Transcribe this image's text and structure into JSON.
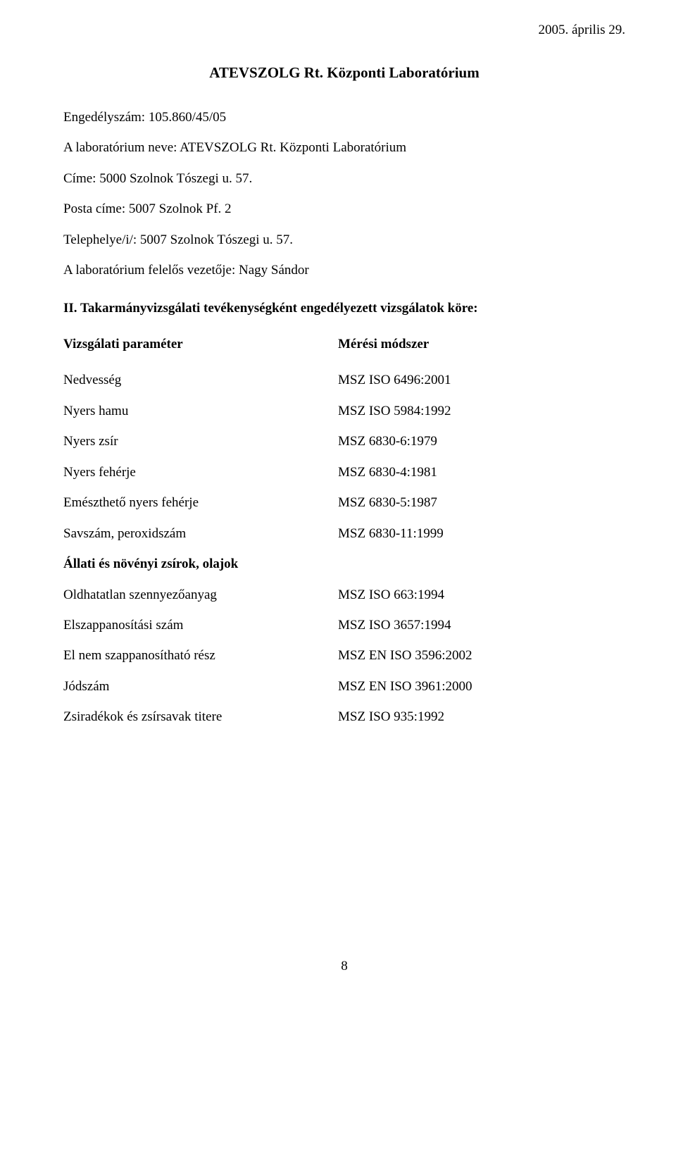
{
  "header": {
    "date": "2005. április 29."
  },
  "title": "ATEVSZOLG Rt. Központi Laboratórium",
  "info": {
    "license": "Engedélyszám: 105.860/45/05",
    "lab_name": "A laboratórium neve: ATEVSZOLG Rt. Központi Laboratórium",
    "address": "Címe: 5000 Szolnok Tószegi u. 57.",
    "postal": "Posta címe: 5007 Szolnok Pf. 2",
    "site": "Telephelye/i/: 5007 Szolnok Tószegi u. 57.",
    "manager": "A laboratórium felelős vezetője: Nagy Sándor"
  },
  "section_heading": "II. Takarmányvizsgálati tevékenységként engedélyezett vizsgálatok köre:",
  "columns": {
    "left_header": "Vizsgálati paraméter",
    "right_header": "Mérési módszer"
  },
  "rows": [
    {
      "param": "Nedvesség",
      "method": "MSZ ISO 6496:2001"
    },
    {
      "param": "Nyers hamu",
      "method": "MSZ ISO 5984:1992"
    },
    {
      "param": "Nyers zsír",
      "method": "MSZ 6830-6:1979"
    },
    {
      "param": "Nyers fehérje",
      "method": "MSZ 6830-4:1981"
    },
    {
      "param": "Emészthető nyers fehérje",
      "method": "MSZ 6830-5:1987"
    },
    {
      "param": "Savszám, peroxidszám",
      "method": "MSZ 6830-11:1999"
    }
  ],
  "subsection_heading": "Állati és növényi zsírok, olajok",
  "rows2": [
    {
      "param": "Oldhatatlan szennyezőanyag",
      "method": "MSZ ISO 663:1994"
    },
    {
      "param": "Elszappanosítási szám",
      "method": "MSZ ISO 3657:1994"
    },
    {
      "param": "El nem szappanosítható rész",
      "method": "MSZ EN ISO 3596:2002"
    },
    {
      "param": "Jódszám",
      "method": "MSZ EN ISO 3961:2000"
    },
    {
      "param": "Zsiradékok és zsírsavak titere",
      "method": "MSZ ISO 935:1992"
    }
  ],
  "page_number": "8"
}
